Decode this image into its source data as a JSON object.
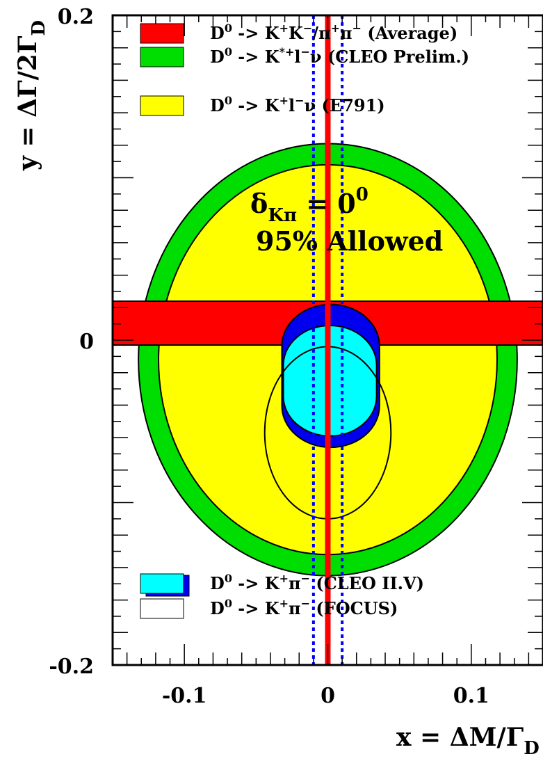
{
  "chart_data": {
    "type": "region",
    "xlabel": "x = ΔM/Γ",
    "xlabel_sub": "D",
    "ylabel": "y = ΔΓ/2Γ",
    "ylabel_sub": "D",
    "xlim": [
      -0.15,
      0.15
    ],
    "ylim": [
      -0.2,
      0.2
    ],
    "x_ticks": [
      {
        "value": -0.1,
        "label": "-0.1"
      },
      {
        "value": 0,
        "label": "0"
      },
      {
        "value": 0.1,
        "label": "0.1"
      }
    ],
    "y_ticks": [
      {
        "value": 0.2,
        "label": "0.2"
      },
      {
        "value": 0,
        "label": "0"
      },
      {
        "value": -0.2,
        "label": "-0.2"
      }
    ],
    "annotation": {
      "delta_symbol": "δ",
      "delta_sub": "Kπ",
      "delta_eq": " = 0",
      "delta_sup": "0",
      "allowed": "95% Allowed"
    },
    "regions": [
      {
        "name": "D0 -> K*+ l- v (CLEO Prelim.)",
        "shape": "ellipse",
        "cx": 0.0,
        "cy": -0.012,
        "rx": 0.132,
        "ry": 0.133,
        "color": "#00dd00"
      },
      {
        "name": "D0 -> K+ l- v (E791)",
        "shape": "ellipse",
        "cx": 0.0,
        "cy": -0.012,
        "rx": 0.118,
        "ry": 0.12,
        "color": "#ffff00"
      },
      {
        "name": "D0 -> K+ K- / pi+ pi- (Average)",
        "shape": "band",
        "y_min": -0.003,
        "y_max": 0.024,
        "color": "#ff0000"
      },
      {
        "name": "D0 -> K+ pi- (CLEO II.V) outer",
        "shape": "capsule",
        "x_min": -0.032,
        "x_max": 0.036,
        "y_min": -0.066,
        "y_max": 0.022,
        "color": "#0000ee"
      },
      {
        "name": "D0 -> K+ pi- (CLEO II.V) inner",
        "shape": "capsule",
        "x_min": -0.031,
        "x_max": 0.034,
        "y_min": -0.059,
        "y_max": 0.009,
        "color": "#00ffff"
      },
      {
        "name": "D0 -> K+ pi- (FOCUS)",
        "shape": "ellipse",
        "cx": 0.0,
        "cy": -0.057,
        "rx": 0.044,
        "ry": 0.053,
        "color": "none"
      }
    ],
    "lines": [
      {
        "name": "average-center",
        "orientation": "vertical",
        "x": 0.0,
        "color": "#ff0000",
        "style": "solid"
      },
      {
        "name": "limit-left",
        "orientation": "vertical",
        "x": -0.01,
        "color": "#0000ff",
        "style": "dotted"
      },
      {
        "name": "limit-right",
        "orientation": "vertical",
        "x": 0.01,
        "color": "#0000ff",
        "style": "dotted"
      }
    ],
    "legend_top": [
      {
        "swatch": "#ff0000",
        "parts": [
          "D",
          "0",
          " -> K",
          "+",
          "K",
          "-",
          "/π",
          "+",
          "π",
          "-",
          " (Average)"
        ]
      },
      {
        "swatch": "#00dd00",
        "parts": [
          "D",
          "0",
          " -> K",
          "*+",
          "l",
          "-",
          "ν (CLEO Prelim.)"
        ]
      },
      {
        "swatch": "#ffff00",
        "parts": [
          "D",
          "0",
          " -> K",
          "+",
          "l",
          "-",
          "ν (E791)"
        ]
      }
    ],
    "legend_bottom": [
      {
        "swatch": "#00ffff",
        "swatch_border": "#0000ee",
        "parts": [
          "D",
          "0",
          " -> K",
          "+",
          "π",
          "-",
          " (CLEO II.V)"
        ]
      },
      {
        "swatch": "#ffffff",
        "parts": [
          "D",
          "0",
          " -> K",
          "+",
          "π",
          "-",
          " (FOCUS)"
        ]
      }
    ],
    "legend_placement": "top-left and bottom-left, inside plot",
    "grid": false
  }
}
